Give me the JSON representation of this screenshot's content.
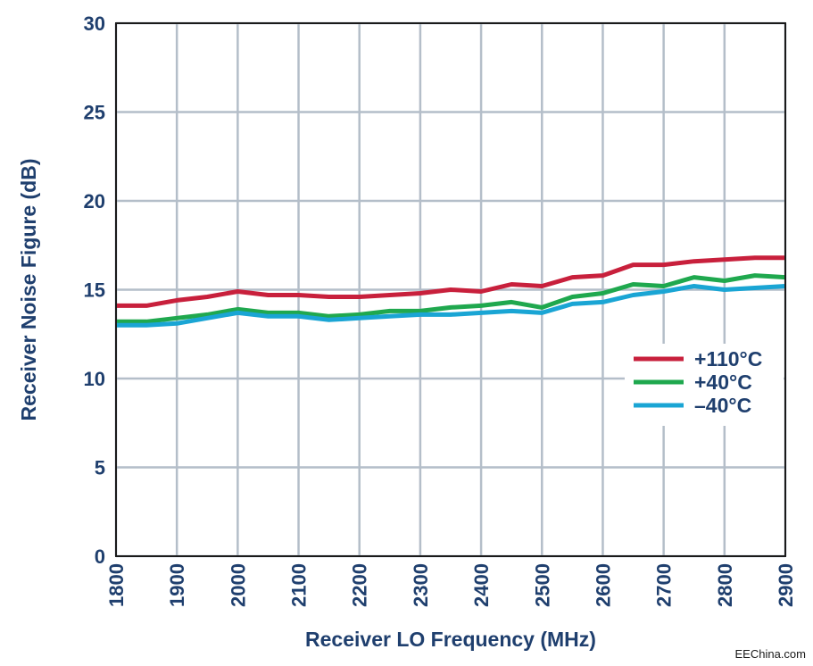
{
  "chart_data": {
    "type": "line",
    "xlabel": "Receiver LO Frequency (MHz)",
    "ylabel": "Receiver Noise Figure (dB)",
    "xlim": [
      1800,
      2900
    ],
    "ylim": [
      0,
      30
    ],
    "xticks": [
      "1800",
      "1900",
      "2000",
      "2100",
      "2200",
      "2300",
      "2400",
      "2500",
      "2600",
      "2700",
      "2800",
      "2900"
    ],
    "yticks": [
      "0",
      "5",
      "10",
      "15",
      "20",
      "25",
      "30"
    ],
    "grid": true,
    "legend_position": "right",
    "x": [
      1800,
      1850,
      1900,
      1950,
      2000,
      2050,
      2100,
      2150,
      2200,
      2250,
      2300,
      2350,
      2400,
      2450,
      2500,
      2550,
      2600,
      2650,
      2700,
      2750,
      2800,
      2850,
      2900
    ],
    "series": [
      {
        "name": "+110°C",
        "color": "#c8203c",
        "values": [
          14.1,
          14.1,
          14.4,
          14.6,
          14.9,
          14.7,
          14.7,
          14.6,
          14.6,
          14.7,
          14.8,
          15.0,
          14.9,
          15.3,
          15.2,
          15.7,
          15.8,
          16.4,
          16.4,
          16.6,
          16.7,
          16.8,
          16.8
        ]
      },
      {
        "name": "+40°C",
        "color": "#1fa84e",
        "values": [
          13.2,
          13.2,
          13.4,
          13.6,
          13.9,
          13.7,
          13.7,
          13.5,
          13.6,
          13.8,
          13.8,
          14.0,
          14.1,
          14.3,
          14.0,
          14.6,
          14.8,
          15.3,
          15.2,
          15.7,
          15.5,
          15.8,
          15.7
        ]
      },
      {
        "name": "–40°C",
        "color": "#1aa5d4",
        "values": [
          13.0,
          13.0,
          13.1,
          13.4,
          13.7,
          13.5,
          13.5,
          13.3,
          13.4,
          13.5,
          13.6,
          13.6,
          13.7,
          13.8,
          13.7,
          14.2,
          14.3,
          14.7,
          14.9,
          15.2,
          15.0,
          15.1,
          15.2
        ]
      }
    ]
  },
  "watermark": "EEChina.com"
}
